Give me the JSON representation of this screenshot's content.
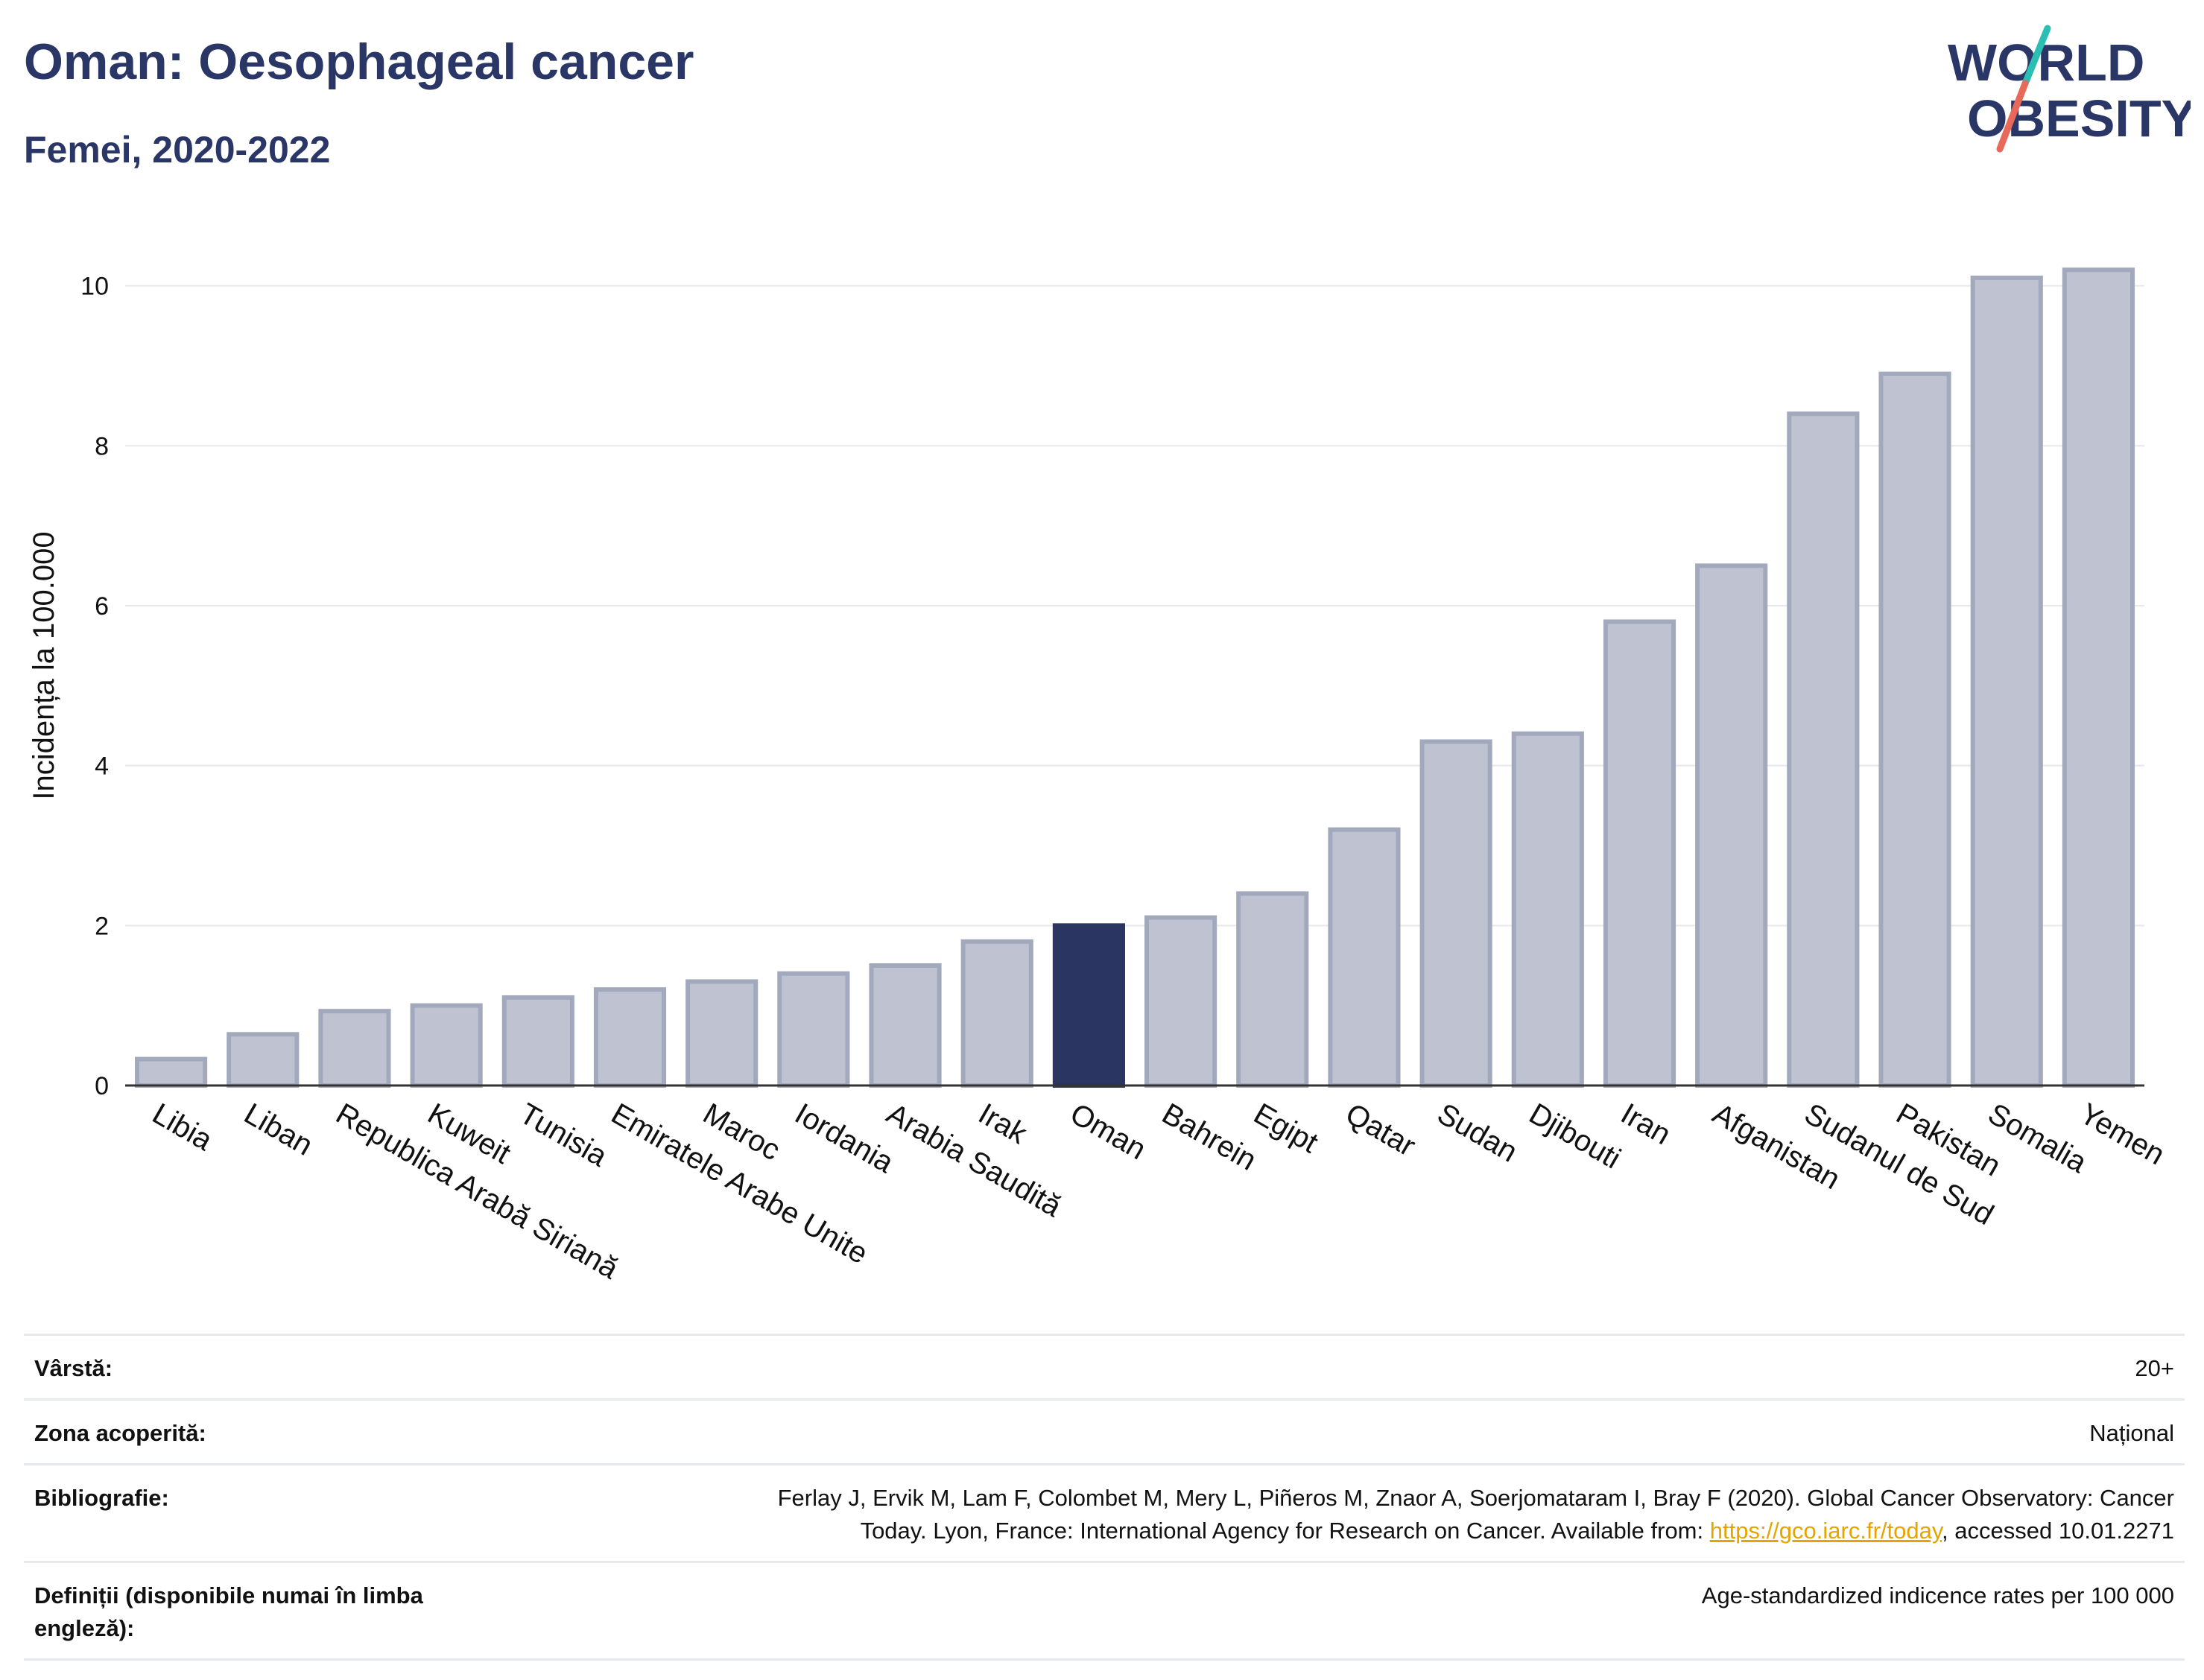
{
  "header": {
    "title": "Oman: Oesophageal cancer",
    "subtitle": "Femei, 2020-2022"
  },
  "logo": {
    "line1": "WORLD",
    "line2": "OBESITY",
    "colors": {
      "text": "#2a3766",
      "slash_teal": "#2bbfb3",
      "slash_red": "#e8685a"
    }
  },
  "chart_data": {
    "type": "bar",
    "ylabel": "Incidența la 100.000",
    "xlabel": "",
    "ylim": [
      0,
      10.5
    ],
    "yticks": [
      0,
      2,
      4,
      6,
      8,
      10
    ],
    "grid": true,
    "highlight": "Oman",
    "colors": {
      "bar": "#bfc3d1",
      "bar_border": "#a3a9bd",
      "highlight": "#2a3561",
      "grid": "#e6e8ee",
      "axis": "#333333"
    },
    "categories": [
      "Libia",
      "Liban",
      "Republica Arabă Siriană",
      "Kuweit",
      "Tunisia",
      "Emiratele Arabe Unite",
      "Maroc",
      "Iordania",
      "Arabia Saudită",
      "Irak",
      "Oman",
      "Bahrein",
      "Egipt",
      "Qatar",
      "Sudan",
      "Djibouti",
      "Iran",
      "Afganistan",
      "Sudanul de Sud",
      "Pakistan",
      "Somalia",
      "Yemen"
    ],
    "values": [
      0.33,
      0.64,
      0.93,
      1.0,
      1.1,
      1.2,
      1.3,
      1.4,
      1.5,
      1.8,
      2.0,
      2.1,
      2.4,
      3.2,
      4.3,
      4.4,
      5.8,
      6.5,
      8.4,
      8.9,
      10.1,
      10.2
    ]
  },
  "info": {
    "age_label": "Vârstă:",
    "age_value": "20+",
    "coverage_label": "Zona acoperită:",
    "coverage_value": "Național",
    "biblio_label": "Bibliografie:",
    "biblio_text1": "Ferlay J, Ervik M, Lam F, Colombet M, Mery L, Piñeros M, Znaor A, Soerjomataram I, Bray F (2020). Global Cancer Observatory: Cancer",
    "biblio_text2": "Today. Lyon, France: International Agency for Research on Cancer. Available from: ",
    "biblio_link": "https://gco.iarc.fr/today",
    "biblio_text3": ", accessed 10.01.2271",
    "def_label": "Definiții (disponibile numai în limba engleză):",
    "def_value": "Age-standardized indicence rates per 100 000"
  }
}
